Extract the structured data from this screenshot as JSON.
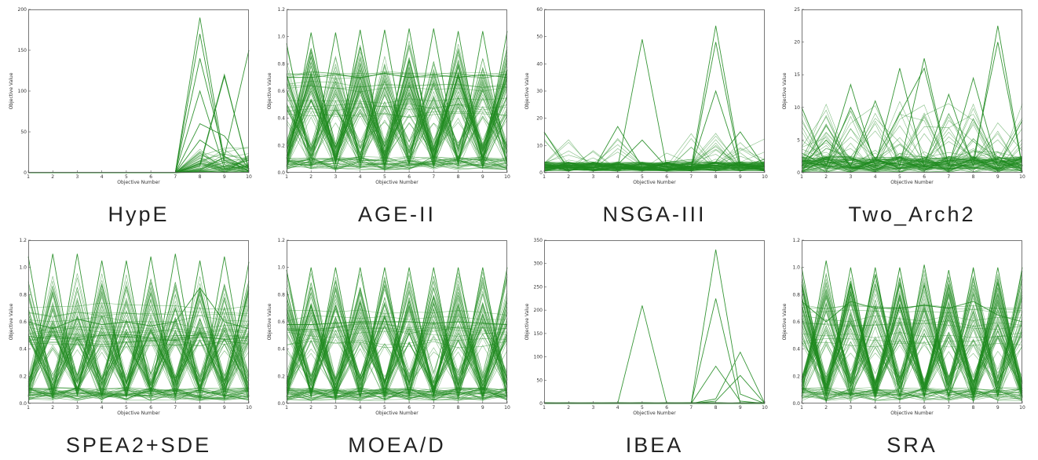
{
  "line_color": "#1f8a1f",
  "xlabel": "Objective Number",
  "ylabel": "Objective Value",
  "chart_data": [
    {
      "type": "line",
      "title": "HypE",
      "xlabel": "Objective Number",
      "ylabel": "Objective Value",
      "x": [
        1,
        2,
        3,
        4,
        5,
        6,
        7,
        8,
        9,
        10
      ],
      "xlim": [
        1,
        10
      ],
      "ylim": [
        0,
        200
      ],
      "yticks": [
        0,
        50,
        100,
        150,
        200
      ],
      "grid": false,
      "profile": "hype",
      "series": [
        {
          "values": [
            0,
            0,
            0,
            0,
            0,
            0,
            0,
            190,
            15,
            3
          ]
        },
        {
          "values": [
            0,
            0,
            0,
            0,
            0,
            0,
            0,
            170,
            10,
            2
          ]
        },
        {
          "values": [
            0,
            0,
            0,
            0,
            0,
            0,
            0,
            140,
            20,
            5
          ]
        },
        {
          "values": [
            0,
            0,
            0,
            0,
            0,
            0,
            0,
            100,
            5,
            8
          ]
        },
        {
          "values": [
            0,
            0,
            0,
            0,
            0,
            0,
            0,
            10,
            120,
            2
          ]
        },
        {
          "values": [
            0,
            0,
            0,
            0,
            0,
            0,
            0,
            8,
            118,
            4
          ]
        },
        {
          "values": [
            0,
            0,
            0,
            0,
            0,
            0,
            0,
            40,
            20,
            150
          ]
        },
        {
          "values": [
            0,
            0,
            0,
            0,
            0,
            0,
            0,
            60,
            45,
            5
          ]
        }
      ]
    },
    {
      "type": "line",
      "title": "AGE-II",
      "xlabel": "Objective Number",
      "ylabel": "Objective Value",
      "x": [
        1,
        2,
        3,
        4,
        5,
        6,
        7,
        8,
        9,
        10
      ],
      "xlim": [
        1,
        10
      ],
      "ylim": [
        0,
        1.2
      ],
      "yticks": [
        0,
        0.2,
        0.4,
        0.6,
        0.8,
        1.0,
        1.2
      ],
      "grid": false,
      "profile": "dense",
      "series": [
        {
          "values": [
            0.95,
            0.05,
            1.03,
            0.05,
            1.05,
            0.06,
            1.06,
            0.05,
            1.04,
            0.05
          ]
        },
        {
          "values": [
            0.05,
            1.03,
            0.06,
            1.05,
            0.05,
            1.06,
            0.06,
            1.04,
            0.05,
            1.04
          ]
        },
        {
          "values": [
            0.7,
            0.7,
            0.72,
            0.7,
            0.73,
            0.7,
            0.72,
            0.7,
            0.72,
            0.7
          ]
        }
      ]
    },
    {
      "type": "line",
      "title": "NSGA-III",
      "xlabel": "Objective Number",
      "ylabel": "Objective Value",
      "x": [
        1,
        2,
        3,
        4,
        5,
        6,
        7,
        8,
        9,
        10
      ],
      "xlim": [
        1,
        10
      ],
      "ylim": [
        0,
        60
      ],
      "yticks": [
        0,
        10,
        20,
        30,
        40,
        50,
        60
      ],
      "grid": false,
      "profile": "sparse",
      "series": [
        {
          "values": [
            15,
            1,
            1,
            2,
            49,
            2,
            1,
            1,
            2,
            1
          ]
        },
        {
          "values": [
            2,
            1,
            1,
            1,
            2,
            1,
            2,
            54,
            3,
            2
          ]
        },
        {
          "values": [
            3,
            2,
            1,
            2,
            1,
            1,
            1,
            48,
            2,
            1
          ]
        },
        {
          "values": [
            1,
            2,
            1,
            17,
            2,
            1,
            2,
            30,
            2,
            5
          ]
        },
        {
          "values": [
            2,
            1,
            2,
            3,
            12,
            2,
            1,
            4,
            15,
            2
          ]
        }
      ]
    },
    {
      "type": "line",
      "title": "Two_Arch2",
      "xlabel": "Objective Number",
      "ylabel": "Objective Value",
      "x": [
        1,
        2,
        3,
        4,
        5,
        6,
        7,
        8,
        9,
        10
      ],
      "xlim": [
        1,
        10
      ],
      "ylim": [
        0,
        25
      ],
      "yticks": [
        0,
        5,
        10,
        15,
        20,
        25
      ],
      "grid": false,
      "profile": "medium",
      "series": [
        {
          "values": [
            10,
            1,
            13.5,
            1,
            16,
            1,
            12,
            1,
            22.5,
            1
          ]
        },
        {
          "values": [
            1,
            5,
            1,
            11,
            1,
            17.5,
            1,
            14.5,
            1,
            8
          ]
        },
        {
          "values": [
            3,
            1,
            10,
            2,
            9,
            16,
            1,
            2,
            20,
            1
          ]
        }
      ]
    },
    {
      "type": "line",
      "title": "SPEA2+SDE",
      "xlabel": "Objective Number",
      "ylabel": "Objective Value",
      "x": [
        1,
        2,
        3,
        4,
        5,
        6,
        7,
        8,
        9,
        10
      ],
      "xlim": [
        1,
        10
      ],
      "ylim": [
        0,
        1.2
      ],
      "yticks": [
        0,
        0.2,
        0.4,
        0.6,
        0.8,
        1.0,
        1.2
      ],
      "grid": false,
      "profile": "dense",
      "series": [
        {
          "values": [
            1.08,
            0.05,
            1.1,
            0.05,
            1.05,
            0.06,
            1.1,
            0.05,
            1.08,
            0.05
          ]
        },
        {
          "values": [
            0.05,
            1.1,
            0.06,
            1.05,
            0.05,
            1.08,
            0.06,
            1.05,
            0.05,
            1.04
          ]
        },
        {
          "values": [
            0.6,
            0.55,
            0.62,
            0.58,
            0.6,
            0.57,
            0.6,
            0.85,
            0.6,
            0.55
          ]
        }
      ]
    },
    {
      "type": "line",
      "title": "MOEA/D",
      "xlabel": "Objective Number",
      "ylabel": "Objective Value",
      "x": [
        1,
        2,
        3,
        4,
        5,
        6,
        7,
        8,
        9,
        10
      ],
      "xlim": [
        1,
        10
      ],
      "ylim": [
        0,
        1.2
      ],
      "yticks": [
        0,
        0.2,
        0.4,
        0.6,
        0.8,
        1.0,
        1.2
      ],
      "grid": false,
      "profile": "dense",
      "series": [
        {
          "values": [
            0.98,
            0.05,
            1.0,
            0.05,
            1.0,
            0.05,
            1.0,
            0.05,
            1.0,
            0.05
          ]
        },
        {
          "values": [
            0.05,
            1.0,
            0.05,
            1.0,
            0.05,
            1.0,
            0.05,
            1.0,
            0.05,
            1.0
          ]
        },
        {
          "values": [
            0.58,
            0.58,
            0.59,
            0.6,
            0.6,
            0.6,
            0.59,
            0.6,
            0.59,
            0.58
          ]
        }
      ]
    },
    {
      "type": "line",
      "title": "IBEA",
      "xlabel": "Objective Number",
      "ylabel": "Objective Value",
      "x": [
        1,
        2,
        3,
        4,
        5,
        6,
        7,
        8,
        9,
        10
      ],
      "xlim": [
        1,
        10
      ],
      "ylim": [
        0,
        350
      ],
      "yticks": [
        0,
        50,
        100,
        150,
        200,
        250,
        300,
        350
      ],
      "grid": false,
      "profile": "ibea",
      "series": [
        {
          "values": [
            0,
            0,
            0,
            0,
            210,
            0,
            0,
            0,
            0,
            0
          ]
        },
        {
          "values": [
            0,
            0,
            0,
            0,
            0,
            0,
            0,
            330,
            20,
            0
          ]
        },
        {
          "values": [
            0,
            0,
            0,
            0,
            0,
            0,
            0,
            225,
            0,
            0
          ]
        },
        {
          "values": [
            0,
            0,
            0,
            0,
            0,
            0,
            0,
            80,
            5,
            0
          ]
        },
        {
          "values": [
            0,
            0,
            0,
            0,
            0,
            0,
            0,
            10,
            110,
            0
          ]
        },
        {
          "values": [
            0,
            0,
            0,
            0,
            0,
            0,
            0,
            5,
            60,
            0
          ]
        }
      ]
    },
    {
      "type": "line",
      "title": "SRA",
      "xlabel": "Objective Number",
      "ylabel": "Objective Value",
      "x": [
        1,
        2,
        3,
        4,
        5,
        6,
        7,
        8,
        9,
        10
      ],
      "xlim": [
        1,
        10
      ],
      "ylim": [
        0,
        1.2
      ],
      "yticks": [
        0,
        0.2,
        0.4,
        0.6,
        0.8,
        1.0,
        1.2
      ],
      "grid": false,
      "profile": "dense",
      "series": [
        {
          "values": [
            1.0,
            0.05,
            1.0,
            0.05,
            1.0,
            0.05,
            0.98,
            0.05,
            1.0,
            0.05
          ]
        },
        {
          "values": [
            0.05,
            1.05,
            0.05,
            1.0,
            0.05,
            1.02,
            0.05,
            1.0,
            0.05,
            1.0
          ]
        },
        {
          "values": [
            0.75,
            0.6,
            0.75,
            0.7,
            0.7,
            0.72,
            0.7,
            0.75,
            0.65,
            0.6
          ]
        }
      ]
    }
  ]
}
